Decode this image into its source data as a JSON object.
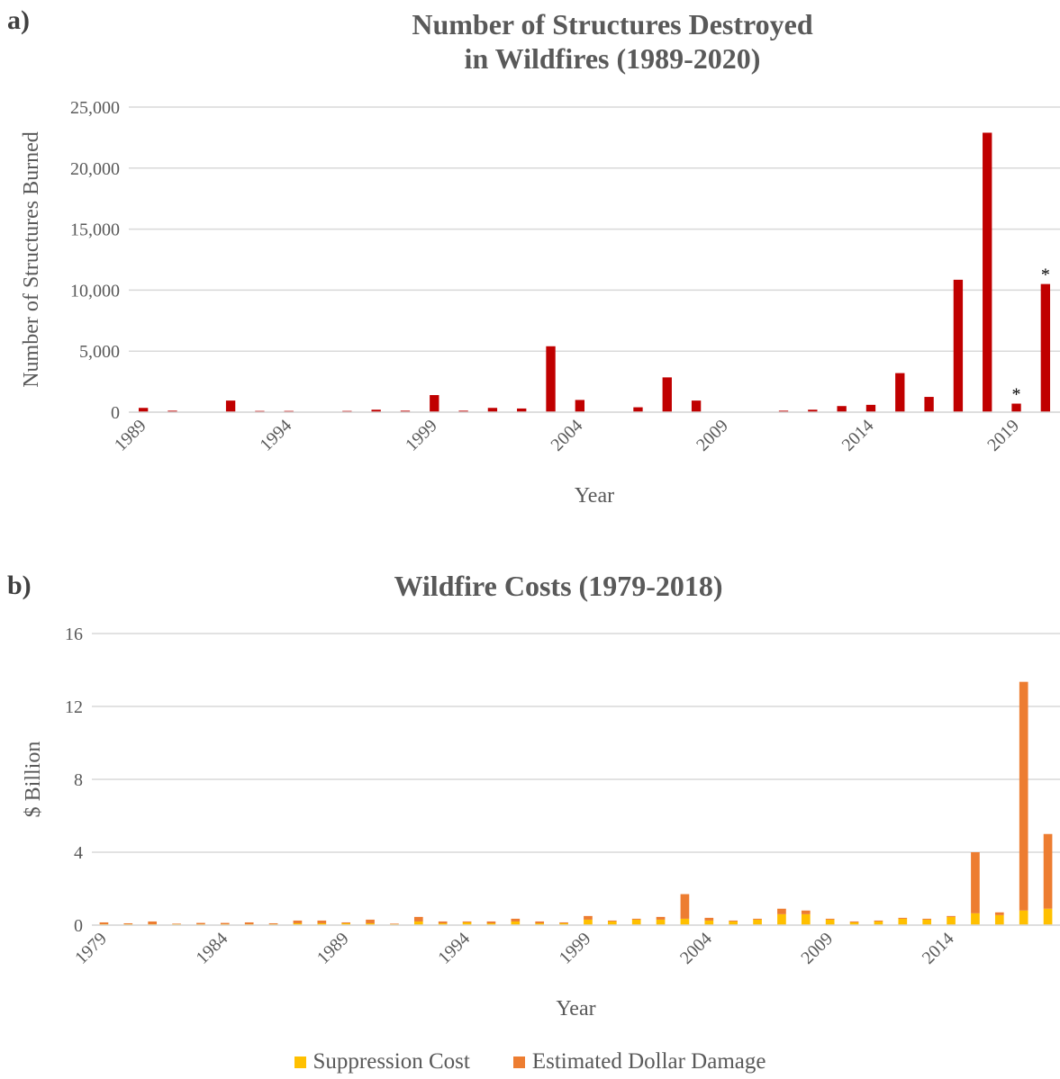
{
  "panel_a_label": "a)",
  "panel_b_label": "b)",
  "chart_data": [
    {
      "type": "bar",
      "title_line1": "Number of Structures Destroyed",
      "title_line2": "in Wildfires (1989-2020)",
      "xlabel": "Year",
      "ylabel": "Number of Structures Burned",
      "ylim": [
        0,
        25000
      ],
      "yticks": [
        0,
        5000,
        10000,
        15000,
        20000,
        25000
      ],
      "ytick_labels": [
        "0",
        "5,000",
        "10,000",
        "15,000",
        "20,000",
        "25,000"
      ],
      "xtick_labels": [
        "1989",
        "1994",
        "1999",
        "2004",
        "2009",
        "2014",
        "2019"
      ],
      "grid": true,
      "color": "#C00000",
      "categories": [
        1989,
        1990,
        1991,
        1992,
        1993,
        1994,
        1995,
        1996,
        1997,
        1998,
        1999,
        2000,
        2001,
        2002,
        2003,
        2004,
        2005,
        2006,
        2007,
        2008,
        2009,
        2010,
        2011,
        2012,
        2013,
        2014,
        2015,
        2016,
        2017,
        2018,
        2019,
        2020
      ],
      "values": [
        350,
        120,
        0,
        950,
        100,
        100,
        0,
        100,
        200,
        120,
        1400,
        120,
        350,
        300,
        5400,
        1000,
        0,
        400,
        2850,
        950,
        0,
        0,
        120,
        200,
        500,
        600,
        3200,
        1250,
        10850,
        22900,
        700,
        10500
      ],
      "annotations": [
        {
          "year": 2019,
          "text": "*"
        },
        {
          "year": 2020,
          "text": "*"
        }
      ]
    },
    {
      "type": "bar",
      "stacked": true,
      "title": "Wildfire Costs (1979-2018)",
      "xlabel": "Year",
      "ylabel": "$ Billion",
      "ylim": [
        0,
        16
      ],
      "yticks": [
        0,
        4,
        8,
        12,
        16
      ],
      "ytick_labels": [
        "0",
        "4",
        "8",
        "12",
        "16"
      ],
      "xtick_labels": [
        "1979",
        "1984",
        "1989",
        "1994",
        "1999",
        "2004",
        "2009",
        "2014"
      ],
      "grid": true,
      "legend": "bottom",
      "categories": [
        1979,
        1980,
        1981,
        1982,
        1983,
        1984,
        1985,
        1986,
        1987,
        1988,
        1989,
        1990,
        1991,
        1992,
        1993,
        1994,
        1995,
        1996,
        1997,
        1998,
        1999,
        2000,
        2001,
        2002,
        2003,
        2004,
        2005,
        2006,
        2007,
        2008,
        2009,
        2010,
        2011,
        2012,
        2013,
        2014,
        2015,
        2016,
        2017,
        2018
      ],
      "series": [
        {
          "name": "Suppression Cost",
          "color": "#FFC000",
          "values": [
            0.05,
            0.05,
            0.05,
            0.05,
            0.05,
            0.05,
            0.05,
            0.05,
            0.1,
            0.1,
            0.1,
            0.1,
            0.05,
            0.2,
            0.1,
            0.15,
            0.1,
            0.2,
            0.1,
            0.1,
            0.3,
            0.2,
            0.3,
            0.3,
            0.35,
            0.25,
            0.2,
            0.3,
            0.6,
            0.6,
            0.3,
            0.15,
            0.2,
            0.35,
            0.3,
            0.45,
            0.65,
            0.55,
            0.8,
            0.9
          ]
        },
        {
          "name": "Estimated Dollar Damage",
          "color": "#ED7D31",
          "values": [
            0.1,
            0.05,
            0.15,
            0.03,
            0.07,
            0.07,
            0.1,
            0.05,
            0.15,
            0.15,
            0.05,
            0.2,
            0.03,
            0.25,
            0.1,
            0.05,
            0.1,
            0.15,
            0.1,
            0.05,
            0.2,
            0.05,
            0.05,
            0.15,
            1.35,
            0.15,
            0.05,
            0.05,
            0.3,
            0.2,
            0.05,
            0.05,
            0.05,
            0.05,
            0.05,
            0.05,
            3.35,
            0.15,
            12.55,
            4.1
          ]
        }
      ]
    }
  ]
}
